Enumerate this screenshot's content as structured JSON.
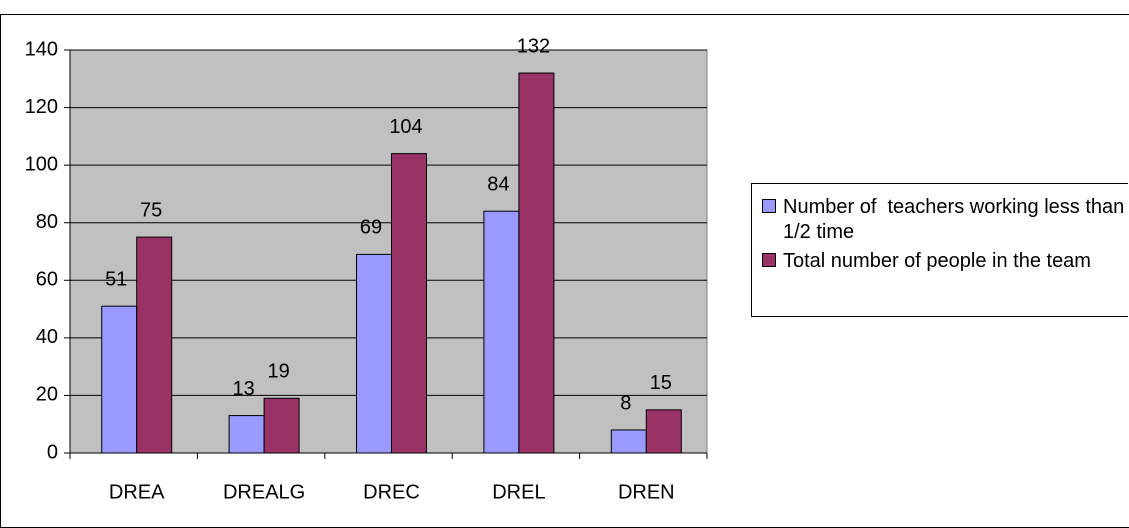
{
  "chart_data": {
    "type": "bar",
    "categories": [
      "DREA",
      "DREALG",
      "DREC",
      "DREL",
      "DREN"
    ],
    "series": [
      {
        "name": "Number of  teachers working less than 1/2 time",
        "color": "#9999ff",
        "values": [
          51,
          13,
          69,
          84,
          8
        ]
      },
      {
        "name": "Total number of people in the team",
        "color": "#993366",
        "values": [
          75,
          19,
          104,
          132,
          15
        ]
      }
    ],
    "ylim": [
      0,
      140
    ],
    "yticks": [
      0,
      20,
      40,
      60,
      80,
      100,
      120,
      140
    ],
    "grid": true,
    "legend": "right"
  }
}
